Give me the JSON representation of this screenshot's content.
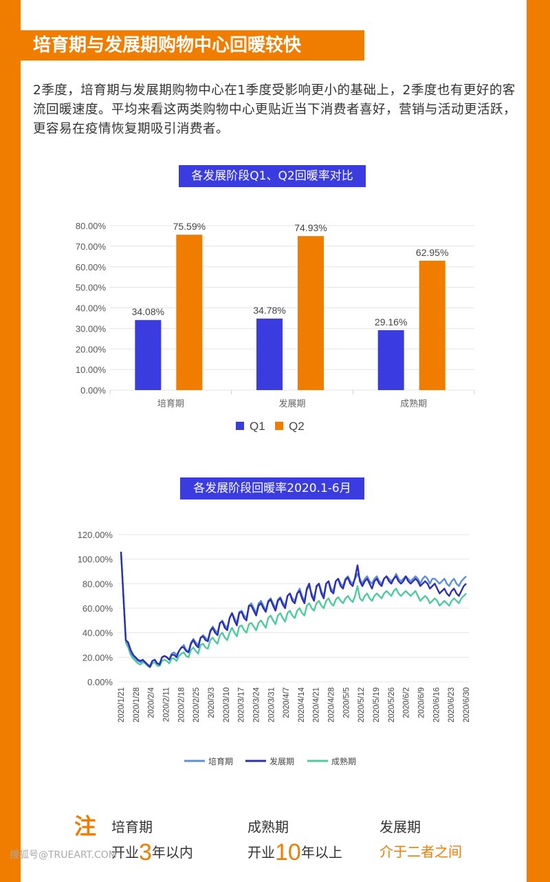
{
  "header": {
    "title": "培育期与发展期购物中心回暖较快",
    "intro": "2季度，培育期与发展期购物中心在1季度受影响更小的基础上，2季度也有更好的客流回暖速度。平均来看这两类购物中心更贴近当下消费者喜好，营销与活动更活跃，更容易在疫情恢复期吸引消费者。"
  },
  "colors": {
    "accent": "#f07d00",
    "q1": "#3a3ce0",
    "q2": "#f07d00",
    "peiyu": "#5b8fd8",
    "fazhan": "#2b2fb0",
    "chengshu": "#4ecb9a"
  },
  "chart_data": [
    {
      "type": "bar",
      "title": "各发展阶段Q1、Q2回暖率对比",
      "categories": [
        "培育期",
        "发展期",
        "成熟期"
      ],
      "series": [
        {
          "name": "Q1",
          "values": [
            34.08,
            34.78,
            29.16
          ],
          "labels": [
            "34.08%",
            "34.78%",
            "29.16%"
          ]
        },
        {
          "name": "Q2",
          "values": [
            75.59,
            74.93,
            62.95
          ],
          "labels": [
            "75.59%",
            "74.93%",
            "62.95%"
          ]
        }
      ],
      "yticks": [
        "0.00%",
        "10.00%",
        "20.00%",
        "30.00%",
        "40.00%",
        "50.00%",
        "60.00%",
        "70.00%",
        "80.00%"
      ],
      "ylim": [
        0,
        80
      ]
    },
    {
      "type": "line",
      "title": "各发展阶段回暖率2020.1-6月",
      "x_tick_labels": [
        "2020/1/21",
        "2020/1/28",
        "2020/2/4",
        "2020/2/11",
        "2020/2/18",
        "2020/2/25",
        "2020/3/3",
        "2020/3/10",
        "2020/3/17",
        "2020/3/24",
        "2020/3/31",
        "2020/4/7",
        "2020/4/14",
        "2020/4/21",
        "2020/4/28",
        "2020/5/5",
        "2020/5/12",
        "2020/5/19",
        "2020/5/26",
        "2020/6/2",
        "2020/6/9",
        "2020/6/16",
        "2020/6/23",
        "2020/6/30"
      ],
      "yticks": [
        "0.00%",
        "20.00%",
        "40.00%",
        "60.00%",
        "80.00%",
        "100.00%",
        "120.00%"
      ],
      "ylim": [
        0,
        120
      ],
      "series": [
        {
          "name": "培育期",
          "values": [
            106,
            70,
            34,
            30,
            24,
            21,
            19,
            17,
            16,
            17,
            16,
            14,
            13,
            17,
            18,
            15,
            15,
            20,
            21,
            20,
            18,
            23,
            24,
            22,
            25,
            28,
            30,
            26,
            25,
            32,
            35,
            32,
            30,
            36,
            38,
            36,
            34,
            42,
            45,
            42,
            40,
            48,
            50,
            46,
            44,
            52,
            56,
            52,
            48,
            57,
            58,
            54,
            52,
            62,
            64,
            60,
            56,
            64,
            66,
            62,
            58,
            66,
            68,
            64,
            60,
            67,
            69,
            65,
            62,
            70,
            72,
            68,
            66,
            72,
            76,
            70,
            66,
            75,
            78,
            72,
            68,
            77,
            80,
            74,
            70,
            80,
            82,
            76,
            74,
            82,
            84,
            80,
            78,
            84,
            86,
            82,
            80,
            84,
            88,
            84,
            80,
            84,
            86,
            82,
            80,
            84,
            86,
            82,
            80,
            84,
            86,
            84,
            82,
            84,
            88,
            84,
            82,
            84,
            86,
            84,
            82,
            84,
            86,
            84,
            80,
            84,
            86,
            84,
            80,
            84,
            84,
            82,
            80,
            82,
            84,
            80,
            78,
            82,
            84,
            80,
            78,
            82,
            84,
            86
          ]
        },
        {
          "name": "发展期",
          "values": [
            106,
            70,
            34,
            32,
            26,
            22,
            20,
            18,
            17,
            18,
            16,
            14,
            12,
            17,
            18,
            15,
            14,
            20,
            21,
            20,
            18,
            22,
            22,
            20,
            25,
            28,
            28,
            25,
            24,
            31,
            34,
            30,
            28,
            36,
            37,
            34,
            33,
            41,
            44,
            40,
            38,
            48,
            49,
            44,
            42,
            52,
            56,
            50,
            46,
            56,
            57,
            52,
            50,
            62,
            62,
            58,
            54,
            62,
            64,
            60,
            57,
            65,
            67,
            62,
            58,
            66,
            68,
            63,
            60,
            70,
            72,
            66,
            64,
            72,
            74,
            68,
            64,
            76,
            80,
            70,
            66,
            78,
            80,
            72,
            68,
            80,
            82,
            74,
            72,
            82,
            84,
            78,
            76,
            83,
            85,
            80,
            78,
            85,
            95,
            82,
            78,
            82,
            84,
            80,
            76,
            82,
            84,
            80,
            78,
            84,
            86,
            82,
            80,
            84,
            86,
            82,
            80,
            82,
            86,
            82,
            80,
            82,
            84,
            82,
            78,
            80,
            82,
            80,
            76,
            78,
            80,
            76,
            72,
            74,
            76,
            72,
            70,
            74,
            76,
            72,
            70,
            74,
            78,
            80
          ]
        },
        {
          "name": "成熟期",
          "values": [
            106,
            70,
            32,
            28,
            22,
            19,
            17,
            15,
            14,
            16,
            15,
            13,
            12,
            15,
            16,
            13,
            13,
            17,
            18,
            17,
            15,
            19,
            19,
            17,
            21,
            23,
            24,
            21,
            20,
            26,
            28,
            25,
            23,
            30,
            31,
            28,
            27,
            34,
            36,
            33,
            31,
            38,
            40,
            36,
            34,
            40,
            44,
            40,
            37,
            45,
            46,
            42,
            40,
            47,
            48,
            45,
            42,
            48,
            50,
            47,
            44,
            52,
            54,
            50,
            47,
            54,
            56,
            52,
            49,
            56,
            58,
            54,
            52,
            58,
            60,
            56,
            54,
            62,
            64,
            60,
            58,
            64,
            66,
            62,
            60,
            66,
            68,
            64,
            62,
            67,
            69,
            66,
            64,
            68,
            70,
            67,
            65,
            70,
            78,
            68,
            66,
            70,
            72,
            68,
            66,
            70,
            72,
            70,
            68,
            72,
            74,
            72,
            70,
            74,
            76,
            72,
            70,
            72,
            74,
            72,
            70,
            72,
            74,
            70,
            66,
            68,
            70,
            68,
            64,
            66,
            68,
            66,
            62,
            64,
            66,
            64,
            62,
            66,
            68,
            66,
            64,
            68,
            70,
            72
          ]
        }
      ]
    }
  ],
  "notes": {
    "mark": "注",
    "peiyu_title": "培育期",
    "peiyu_pre": "开业",
    "peiyu_num": "3",
    "peiyu_post": "年以内",
    "chengshu_title": "成熟期",
    "chengshu_pre": "开业",
    "chengshu_num": "10",
    "chengshu_post": "年以上",
    "fazhan_title": "发展期",
    "fazhan_desc": "介于二者之间"
  },
  "watermark": "搜狐号@TRUEART.COM"
}
